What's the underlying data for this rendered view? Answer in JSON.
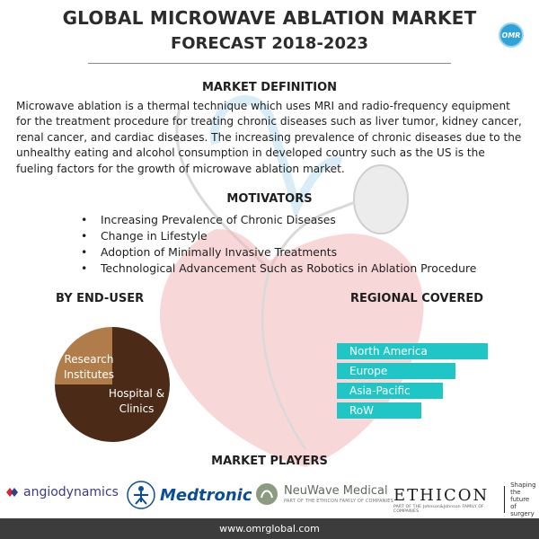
{
  "title_line1": "GLOBAL MICROWAVE ABLATION MARKET",
  "title_line2": "FORECAST 2018-2023",
  "logo_text": "OMR",
  "definition": {
    "heading": "MARKET DEFINITION",
    "text": "Microwave ablation is a thermal technique which uses MRI and radio-frequency equipment for the treatment procedure for treating chronic diseases such as liver tumor, kidney cancer, renal cancer, and cardiac diseases. The increasing prevalence of chronic diseases due to the unhealthy eating and alcohol consumption in developed country such as the US is the fueling factors for the growth of microwave ablation market."
  },
  "motivators": {
    "heading": "MOTIVATORS",
    "items": [
      "Increasing Prevalence of Chronic Diseases",
      "Change in Lifestyle",
      "Adoption of Minimally Invasive Treatments",
      "Technological Advancement Such as Robotics in Ablation Procedure"
    ]
  },
  "end_user": {
    "heading": "BY END-USER",
    "segments": [
      {
        "label_line1": "Research",
        "label_line2": "Institutes",
        "share": 0.25,
        "color": "#b07d4a"
      },
      {
        "label_line1": "Hospital &",
        "label_line2": "Clinics",
        "share": 0.75,
        "color": "#4b2a18"
      }
    ]
  },
  "regional": {
    "heading": "REGIONAL COVERED",
    "regions": [
      "North America",
      "Europe",
      "Asia-Pacific",
      "RoW"
    ],
    "color": "#20c6c6"
  },
  "players": {
    "heading": "MARKET PLAYERS",
    "angiodynamics": "angiodynamics",
    "medtronic": "Medtronic",
    "neuwave": "NeuWave Medical",
    "neuwave_sub": "PART OF THE ETHICON FAMILY OF COMPANIES",
    "ethicon": "ETHICON",
    "ethicon_sub": "PART OF THE Johnson&Johnson FAMILY OF COMPANIES",
    "ethicon_tag": [
      "Shaping",
      "the future",
      "of surgery"
    ]
  },
  "footer": "www.omrglobal.com"
}
